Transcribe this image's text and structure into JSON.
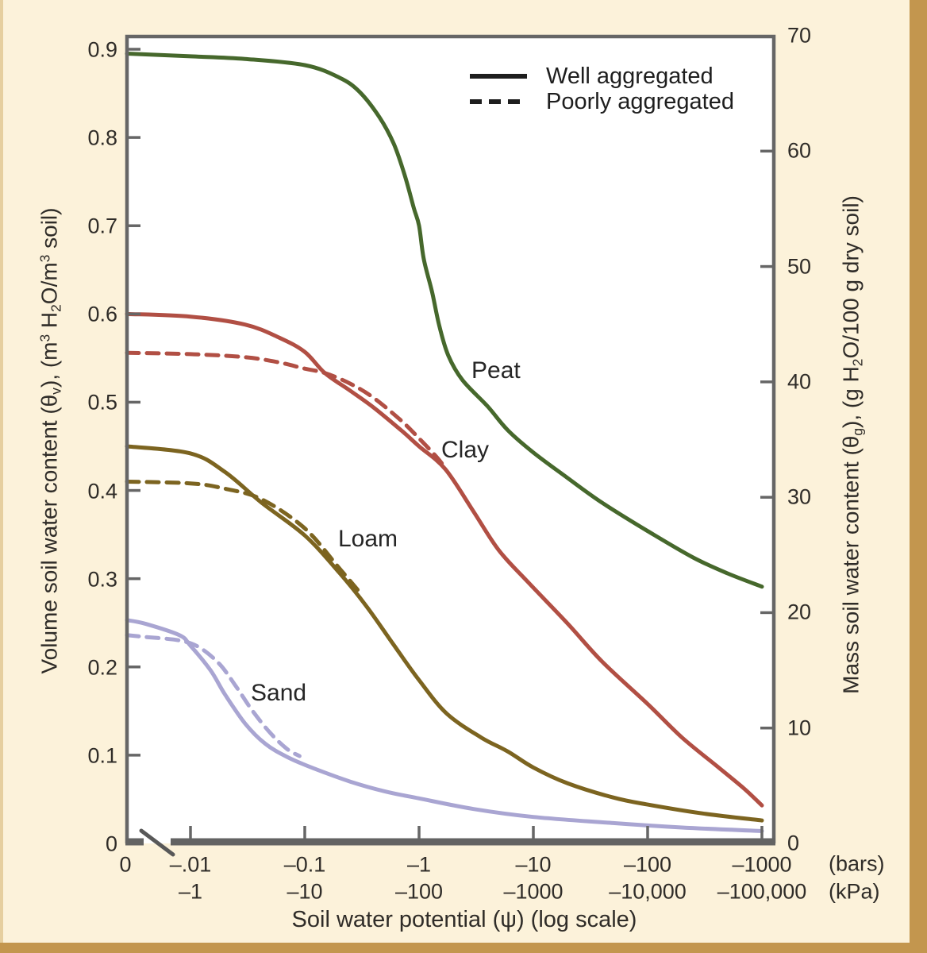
{
  "colors": {
    "peat": "#46682c",
    "clay": "#b14f44",
    "loam": "#7c6420",
    "sand": "#a9a5d2",
    "ink": "#1e1e1e",
    "axis": "#666666",
    "background": "#fcf2da",
    "frame": "#c3964e",
    "plot_background": "#ffffff"
  },
  "legend": {
    "well_label": "Well aggregated",
    "poorly_label": "Poorly aggregated"
  },
  "curve_labels": {
    "peat": "Peat",
    "clay": "Clay",
    "loam": "Loam",
    "sand": "Sand"
  },
  "y_left": {
    "label_parts": [
      "Volume soil water content (θ",
      "v",
      "), (m",
      "3",
      " H",
      "2",
      "O/m",
      "3",
      " soil)"
    ],
    "ticks": [
      "0.9",
      "0.8",
      "0.7",
      "0.6",
      "0.5",
      "0.4",
      "0.3",
      "0.2",
      "0.1",
      "0"
    ]
  },
  "y_right": {
    "label_parts": [
      "Mass soil water content (θ",
      "g",
      "), (g H",
      "2",
      "O/100 g dry soil)"
    ],
    "ticks": [
      "70",
      "60",
      "50",
      "40",
      "30",
      "20",
      "10",
      "0"
    ]
  },
  "x_axis": {
    "bars_ticks": [
      "0",
      "–.01",
      "–0.1",
      "–1",
      "–10",
      "–100",
      "–1000"
    ],
    "kpa_ticks": [
      "–1",
      "–10",
      "–100",
      "–1000",
      "–10,000",
      "–100,000"
    ],
    "bars_unit": "(bars)",
    "kpa_unit": "(kPa)",
    "title": "Soil water potential (ψ) (log scale)"
  },
  "chart_data": {
    "type": "line",
    "title": "Soil water retention curves for four soils",
    "xlabel": "Soil water potential (ψ) (log scale)",
    "ylabel_left": "Volume soil water content (θv), (m3 H2O/m3 soil)",
    "ylabel_right": "Mass soil water content (θg), (g H2O/100 g dry soil)",
    "x_scale": "log, negative potential in bars (kPa = bars × 100), axis break between 0 and -0.01",
    "x_tick_values_bars": [
      0,
      -0.01,
      -0.1,
      -1,
      -10,
      -100,
      -1000
    ],
    "x_tick_values_kpa": [
      -1,
      -10,
      -100,
      -1000,
      -10000,
      -100000
    ],
    "y_left_tick_values": [
      0.9,
      0.8,
      0.7,
      0.6,
      0.5,
      0.4,
      0.3,
      0.2,
      0.1,
      0
    ],
    "y_right_tick_values": [
      70,
      60,
      50,
      40,
      30,
      20,
      10,
      0
    ],
    "ylim_left": [
      0,
      0.93
    ],
    "legend_entries": [
      "Well aggregated (solid)",
      "Poorly aggregated (dashed)"
    ],
    "legend_position": "top-right-inside",
    "grid": false,
    "series": [
      {
        "name": "Peat",
        "aggregation": "well",
        "style": "solid",
        "color_key": "peat",
        "points": [
          [
            0,
            0.895
          ],
          [
            -0.01,
            0.892
          ],
          [
            -0.03,
            0.889
          ],
          [
            -0.1,
            0.882
          ],
          [
            -0.2,
            0.868
          ],
          [
            -0.3,
            0.852
          ],
          [
            -0.45,
            0.823
          ],
          [
            -0.6,
            0.793
          ],
          [
            -0.75,
            0.757
          ],
          [
            -0.9,
            0.72
          ],
          [
            -1,
            0.7
          ],
          [
            -1.1,
            0.662
          ],
          [
            -1.3,
            0.625
          ],
          [
            -1.5,
            0.587
          ],
          [
            -1.8,
            0.553
          ],
          [
            -2.4,
            0.525
          ],
          [
            -4,
            0.495
          ],
          [
            -6,
            0.468
          ],
          [
            -10,
            0.443
          ],
          [
            -20,
            0.414
          ],
          [
            -40,
            0.386
          ],
          [
            -100,
            0.354
          ],
          [
            -250,
            0.324
          ],
          [
            -500,
            0.306
          ],
          [
            -1000,
            0.291
          ]
        ]
      },
      {
        "name": "Clay",
        "aggregation": "well",
        "style": "solid",
        "color_key": "clay",
        "points": [
          [
            0,
            0.6
          ],
          [
            -0.01,
            0.597
          ],
          [
            -0.03,
            0.588
          ],
          [
            -0.06,
            0.573
          ],
          [
            -0.1,
            0.557
          ],
          [
            -0.15,
            0.533
          ],
          [
            -0.25,
            0.513
          ],
          [
            -0.4,
            0.494
          ],
          [
            -0.7,
            0.468
          ],
          [
            -1,
            0.45
          ],
          [
            -1.7,
            0.424
          ],
          [
            -3,
            0.376
          ],
          [
            -5,
            0.332
          ],
          [
            -9,
            0.296
          ],
          [
            -20,
            0.249
          ],
          [
            -40,
            0.206
          ],
          [
            -100,
            0.158
          ],
          [
            -200,
            0.12
          ],
          [
            -400,
            0.088
          ],
          [
            -700,
            0.062
          ],
          [
            -1000,
            0.043
          ]
        ]
      },
      {
        "name": "Clay",
        "aggregation": "poor",
        "style": "dashed",
        "color_key": "clay",
        "points": [
          [
            0,
            0.556
          ],
          [
            -0.01,
            0.5545
          ],
          [
            -0.03,
            0.551
          ],
          [
            -0.06,
            0.545
          ],
          [
            -0.1,
            0.538
          ],
          [
            -0.15,
            0.533
          ],
          [
            -0.25,
            0.521
          ],
          [
            -0.4,
            0.505
          ],
          [
            -0.7,
            0.479
          ],
          [
            -1,
            0.459
          ],
          [
            -1.4,
            0.439
          ],
          [
            -1.7,
            0.4255
          ]
        ]
      },
      {
        "name": "Loam",
        "aggregation": "well",
        "style": "solid",
        "color_key": "loam",
        "points": [
          [
            0,
            0.45
          ],
          [
            -0.01,
            0.442
          ],
          [
            -0.02,
            0.421
          ],
          [
            -0.042,
            0.386
          ],
          [
            -0.1,
            0.349
          ],
          [
            -0.2,
            0.307
          ],
          [
            -0.35,
            0.268
          ],
          [
            -0.6,
            0.225
          ],
          [
            -1,
            0.185
          ],
          [
            -1.75,
            0.147
          ],
          [
            -3.5,
            0.12
          ],
          [
            -6,
            0.104
          ],
          [
            -10,
            0.086
          ],
          [
            -20,
            0.068
          ],
          [
            -50,
            0.052
          ],
          [
            -100,
            0.044
          ],
          [
            -300,
            0.034
          ],
          [
            -1000,
            0.026
          ]
        ]
      },
      {
        "name": "Loam",
        "aggregation": "poor",
        "style": "dashed",
        "color_key": "loam",
        "points": [
          [
            0,
            0.41
          ],
          [
            -0.01,
            0.408
          ],
          [
            -0.02,
            0.402
          ],
          [
            -0.042,
            0.39
          ],
          [
            -0.1,
            0.357
          ],
          [
            -0.2,
            0.312
          ],
          [
            -0.32,
            0.281
          ]
        ]
      },
      {
        "name": "Sand",
        "aggregation": "well",
        "style": "solid",
        "color_key": "sand",
        "points": [
          [
            0,
            0.253
          ],
          [
            -0.004,
            0.249
          ],
          [
            -0.008,
            0.236
          ],
          [
            -0.01,
            0.224
          ],
          [
            -0.015,
            0.196
          ],
          [
            -0.02,
            0.169
          ],
          [
            -0.03,
            0.136
          ],
          [
            -0.045,
            0.113
          ],
          [
            -0.07,
            0.098
          ],
          [
            -0.12,
            0.085
          ],
          [
            -0.25,
            0.07
          ],
          [
            -0.5,
            0.059
          ],
          [
            -1,
            0.051
          ],
          [
            -3,
            0.039
          ],
          [
            -10,
            0.03
          ],
          [
            -50,
            0.023
          ],
          [
            -200,
            0.018
          ],
          [
            -1000,
            0.014
          ]
        ]
      },
      {
        "name": "Sand",
        "aggregation": "poor",
        "style": "dashed",
        "color_key": "sand",
        "points": [
          [
            0,
            0.236
          ],
          [
            -0.004,
            0.234
          ],
          [
            -0.008,
            0.23
          ],
          [
            -0.012,
            0.222
          ],
          [
            -0.018,
            0.203
          ],
          [
            -0.025,
            0.178
          ],
          [
            -0.035,
            0.15
          ],
          [
            -0.05,
            0.125
          ],
          [
            -0.07,
            0.107
          ],
          [
            -0.09,
            0.099
          ]
        ]
      }
    ]
  }
}
